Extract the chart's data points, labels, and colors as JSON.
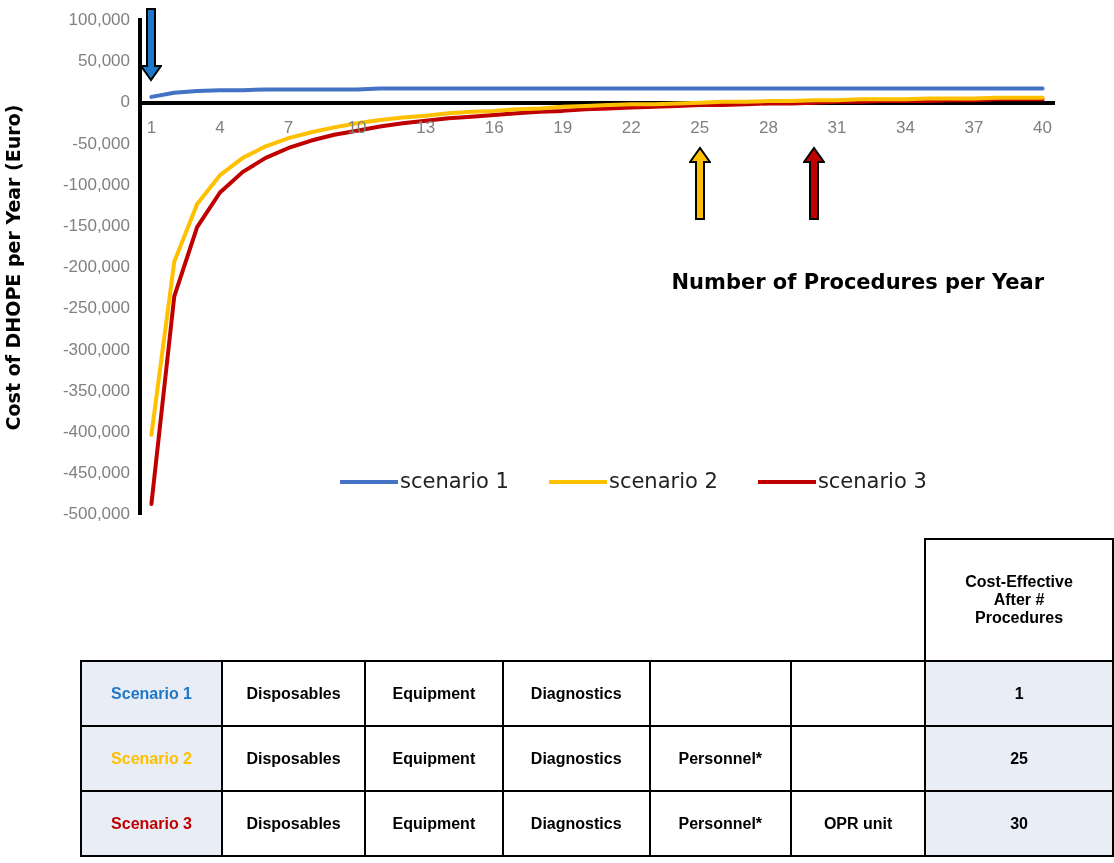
{
  "chart_data": [
    {
      "type": "line",
      "ylabel": "Cost of DHOPE per Year (Euro)",
      "xlabel": "Number of Procedures per Year",
      "categories": [
        "1",
        null,
        null,
        "4",
        null,
        null,
        "7",
        null,
        null,
        "10",
        null,
        null,
        "13",
        null,
        null,
        "16",
        null,
        null,
        "19",
        null,
        null,
        "22",
        null,
        null,
        "25",
        null,
        null,
        "28",
        null,
        null,
        "31",
        null,
        null,
        "34",
        null,
        null,
        "37",
        null,
        null,
        "40"
      ],
      "ylim": [
        -500000,
        100000
      ],
      "yticks": [
        {
          "value": -500000,
          "label": "-500,000"
        },
        {
          "value": -450000,
          "label": "-450,000"
        },
        {
          "value": -400000,
          "label": "-400,000"
        },
        {
          "value": -350000,
          "label": "-350,000"
        },
        {
          "value": -300000,
          "label": "-300,000"
        },
        {
          "value": -250000,
          "label": "-250,000"
        },
        {
          "value": -200000,
          "label": "-200,000"
        },
        {
          "value": -150000,
          "label": "-150,000"
        },
        {
          "value": -100000,
          "label": "-100,000"
        },
        {
          "value": -50000,
          "label": "-50,000"
        },
        0,
        {
          "value": 50000,
          "label": "50,000"
        },
        {
          "value": 100000,
          "label": "100,000"
        }
      ],
      "grid": false,
      "legend": "bottom",
      "series": [
        {
          "name": "scenario 1",
          "color": "#4472c4",
          "values": [
            7000,
            12000,
            14000,
            15000,
            15000,
            16000,
            16000,
            16000,
            16000,
            16000,
            17000,
            17000,
            17000,
            17000,
            17000,
            17000,
            17000,
            17000,
            17000,
            17000,
            17000,
            17000,
            17000,
            17000,
            17000,
            17000,
            17000,
            17000,
            17000,
            17000,
            17000,
            17000,
            17000,
            17000,
            17000,
            17000,
            17000,
            17000,
            17000,
            17000
          ]
        },
        {
          "name": "scenario 2",
          "color": "#ffc000",
          "values": [
            -403000,
            -193000,
            -123000,
            -88000,
            -67000,
            -53000,
            -43000,
            -36000,
            -30000,
            -25000,
            -21000,
            -18000,
            -16000,
            -13000,
            -11000,
            -10000,
            -8000,
            -7000,
            -5000,
            -4000,
            -3000,
            -2000,
            -2000,
            -1000,
            0,
            1000,
            1000,
            2000,
            2000,
            3000,
            3000,
            4000,
            4000,
            4000,
            5000,
            5000,
            5000,
            6000,
            6000,
            6000
          ]
        },
        {
          "name": "scenario 3",
          "color": "#c00000",
          "values": [
            -487000,
            -235000,
            -151000,
            -109000,
            -84000,
            -67000,
            -55000,
            -46000,
            -39000,
            -34000,
            -29000,
            -25000,
            -22000,
            -19000,
            -17000,
            -15000,
            -13000,
            -11000,
            -10000,
            -8000,
            -7000,
            -6000,
            -5000,
            -4000,
            -3000,
            -3000,
            -2000,
            -1000,
            -1000,
            0,
            1000,
            1000,
            2000,
            2000,
            2000,
            3000,
            3000,
            4000,
            4000,
            4000
          ]
        }
      ]
    },
    {
      "type": "other",
      "categories": [
        null,
        null,
        null,
        null,
        null,
        "Cost-Effective After # Procedures"
      ],
      "y_categories": [
        "Scenario 1",
        "Scenario 2",
        "Scenario 3"
      ],
      "colors": [
        "#1f77c8",
        "#ffc000",
        "#c00000"
      ],
      "cell_labels": [
        [
          "Disposables",
          "Equipment",
          "Diagnostics",
          null,
          null,
          "1"
        ],
        [
          "Disposables",
          "Equipment",
          "Diagnostics",
          "Personnel*",
          null,
          "25"
        ],
        [
          "Disposables",
          "Equipment",
          "Diagnostics",
          "Personnel*",
          "OPR unit",
          "30"
        ]
      ]
    }
  ]
}
